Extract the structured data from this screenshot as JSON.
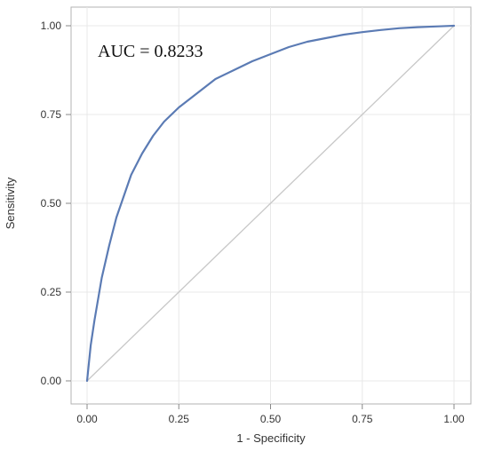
{
  "chart_data": {
    "type": "line",
    "title": "",
    "xlabel": "1 - Specificity",
    "ylabel": "Sensitivity",
    "xlim": [
      0,
      1
    ],
    "ylim": [
      0,
      1
    ],
    "xticks": [
      "0.00",
      "0.25",
      "0.50",
      "0.75",
      "1.00"
    ],
    "yticks": [
      "0.00",
      "0.25",
      "0.50",
      "0.75",
      "1.00"
    ],
    "grid": true,
    "annotation": "AUC = 0.8233",
    "series": [
      {
        "color": "#5b7bb4",
        "x": [
          0,
          0.01,
          0.02,
          0.04,
          0.06,
          0.08,
          0.1,
          0.12,
          0.15,
          0.18,
          0.21,
          0.25,
          0.3,
          0.35,
          0.4,
          0.45,
          0.5,
          0.55,
          0.6,
          0.65,
          0.7,
          0.75,
          0.8,
          0.85,
          0.9,
          0.95,
          1.0
        ],
        "y": [
          0,
          0.1,
          0.17,
          0.29,
          0.38,
          0.46,
          0.52,
          0.58,
          0.64,
          0.69,
          0.73,
          0.77,
          0.81,
          0.85,
          0.875,
          0.9,
          0.92,
          0.94,
          0.955,
          0.965,
          0.975,
          0.982,
          0.988,
          0.993,
          0.996,
          0.998,
          1.0
        ]
      },
      {
        "color": "#c8c8c8",
        "x": [
          0,
          1
        ],
        "y": [
          0,
          1
        ]
      }
    ]
  }
}
